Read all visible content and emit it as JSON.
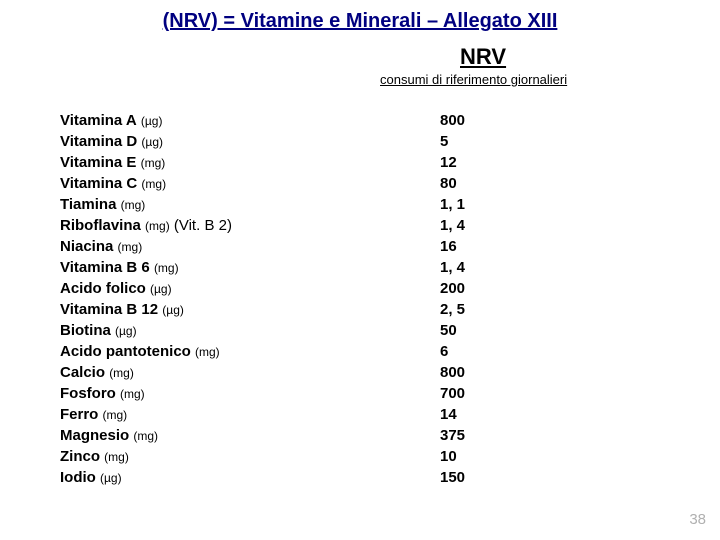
{
  "title": "(NRV) = Vitamine e Minerali – Allegato XIII",
  "nrv_header": "NRV",
  "subheader": "consumi di riferimento giornalieri",
  "page_number": "38",
  "colors": {
    "title_color": "#000080",
    "text_color": "#000000",
    "pagenum_color": "#b0b0b0",
    "background": "#ffffff"
  },
  "typography": {
    "title_fontsize": 20,
    "header_fontsize": 22,
    "body_fontsize": 15,
    "unit_fontsize": 12
  },
  "rows": [
    {
      "name": "Vitamina A",
      "unit": "(µg)",
      "extra": "",
      "value": "800"
    },
    {
      "name": "Vitamina D",
      "unit": "(µg)",
      "extra": "",
      "value": "5"
    },
    {
      "name": "Vitamina E",
      "unit": "(mg)",
      "extra": "",
      "value": "12"
    },
    {
      "name": "Vitamina C",
      "unit": "(mg)",
      "extra": "",
      "value": "80"
    },
    {
      "name": "Tiamina",
      "unit": "(mg)",
      "extra": "",
      "value": "1, 1"
    },
    {
      "name": "Riboflavina",
      "unit": "(mg)",
      "extra": "(Vit. B 2)",
      "value": "1, 4"
    },
    {
      "name": "Niacina",
      "unit": "(mg)",
      "extra": "",
      "value": "16"
    },
    {
      "name": "Vitamina B 6",
      "unit": "(mg)",
      "extra": "",
      "value": "1, 4"
    },
    {
      "name": "Acido folico",
      "unit": "(µg)",
      "extra": "",
      "value": "200"
    },
    {
      "name": "Vitamina B 12",
      "unit": "(µg)",
      "extra": "",
      "value": "2, 5"
    },
    {
      "name": "Biotina",
      "unit": "(µg)",
      "extra": "",
      "value": "50"
    },
    {
      "name": "Acido pantotenico",
      "unit": "(mg)",
      "extra": "",
      "value": "6"
    },
    {
      "name": "Calcio",
      "unit": "(mg)",
      "extra": "",
      "value": "800"
    },
    {
      "name": "Fosforo",
      "unit": "(mg)",
      "extra": "",
      "value": "700"
    },
    {
      "name": "Ferro",
      "unit": "(mg)",
      "extra": "",
      "value": "14"
    },
    {
      "name": "Magnesio",
      "unit": "(mg)",
      "extra": "",
      "value": "375"
    },
    {
      "name": "Zinco",
      "unit": "(mg)",
      "extra": "",
      "value": "10"
    },
    {
      "name": "Iodio",
      "unit": "(µg)",
      "extra": "",
      "value": "150"
    }
  ]
}
